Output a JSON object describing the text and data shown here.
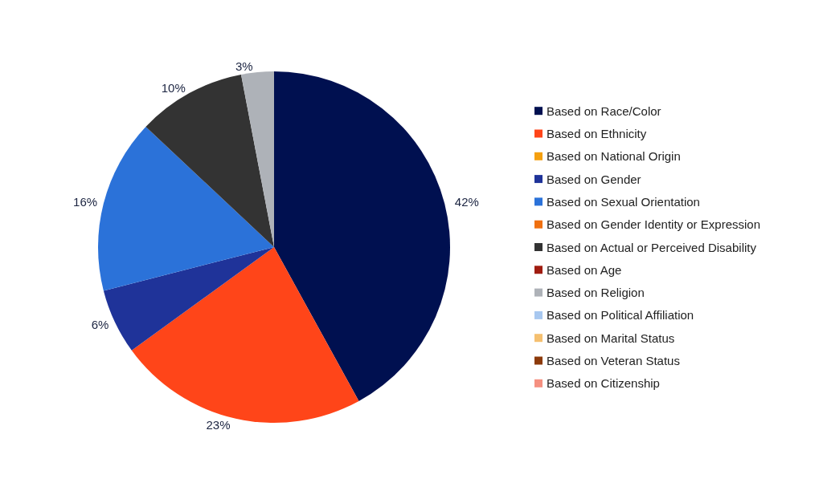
{
  "chart_data": {
    "type": "pie",
    "categories": [
      "Based on Race/Color",
      "Based on Ethnicity",
      "Based on National Origin",
      "Based on Gender",
      "Based on Sexual Orientation",
      "Based on Gender Identity or Expression",
      "Based on Actual or Perceived Disability",
      "Based on Age",
      "Based on Religion",
      "Based on Political Affiliation",
      "Based on Marital Status",
      "Based on Veteran Status",
      "Based on Citizenship"
    ],
    "values": [
      42,
      23,
      0,
      6,
      16,
      0,
      10,
      0,
      3,
      0,
      0,
      0,
      0
    ],
    "value_labels": [
      "42%",
      "23%",
      null,
      "6%",
      "16%",
      null,
      "10%",
      null,
      "3%",
      null,
      null,
      null,
      null
    ],
    "colors": [
      "#001050",
      "#ff4519",
      "#f5a00f",
      "#1f3399",
      "#2b72d9",
      "#f07010",
      "#333333",
      "#a01c10",
      "#aeb2b8",
      "#a8c8f0",
      "#f5c070",
      "#8c3a0a",
      "#f59080"
    ],
    "legend": "right"
  }
}
